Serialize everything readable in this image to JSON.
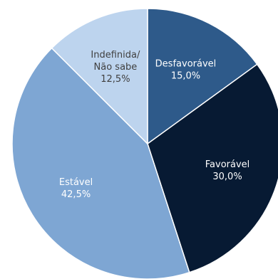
{
  "chart_data": {
    "type": "pie",
    "slices": [
      {
        "label": "Desfavorável",
        "value_label": "15,0%",
        "value": 15.0,
        "color": "#2e5a8a",
        "text_color": "#ffffff"
      },
      {
        "label": "Favorável",
        "value_label": "30,0%",
        "value": 30.0,
        "color": "#071a33",
        "text_color": "#ffffff"
      },
      {
        "label": "Estável",
        "value_label": "42,5%",
        "value": 42.5,
        "color": "#7ea6d3",
        "text_color": "#ffffff"
      },
      {
        "label": "Indefinida/\nNão sabe",
        "value_label": "12,5%",
        "value": 12.5,
        "color": "#bdd4ee",
        "text_color": "#404040"
      }
    ],
    "start": "top",
    "direction": "clockwise"
  }
}
